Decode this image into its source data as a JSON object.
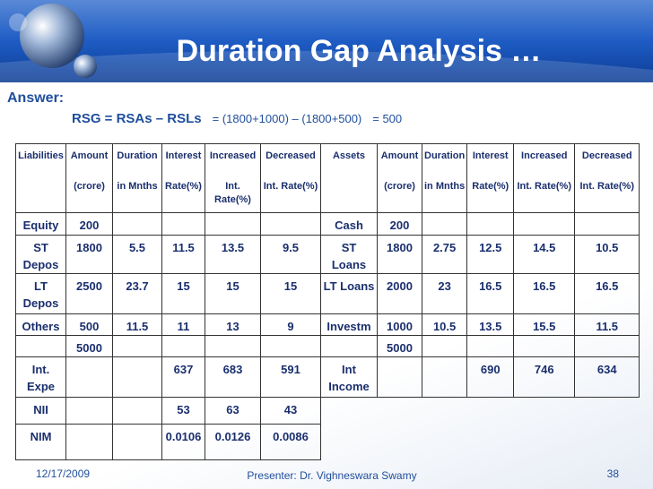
{
  "header": {
    "title": "Duration Gap Analysis …"
  },
  "answer": {
    "label": "Answer:",
    "formula": "RSG  = RSAs – RSLs",
    "expression": "= (1800+1000) – (1800+500)",
    "result": "=  500"
  },
  "table": {
    "header": [
      [
        "Liabilities"
      ],
      [
        "Amount",
        "(crore)"
      ],
      [
        "Duration",
        "in Mnths"
      ],
      [
        "Interest",
        "Rate(%)"
      ],
      [
        "Increased",
        "Int. Rate(%)"
      ],
      [
        "Decreased",
        "Int. Rate(%)"
      ],
      [
        "Assets"
      ],
      [
        "Amount",
        "(crore)"
      ],
      [
        "Duration",
        "in Mnths"
      ],
      [
        "Interest",
        "Rate(%)"
      ],
      [
        "Increased",
        "Int. Rate(%)"
      ],
      [
        "Decreased",
        "Int. Rate(%)"
      ]
    ],
    "rows": [
      [
        "Equity",
        "200",
        null,
        null,
        null,
        null,
        "Cash",
        "200",
        null,
        null,
        null,
        null
      ],
      [
        "ST Depos",
        "1800",
        "5.5",
        "11.5",
        "13.5",
        "9.5",
        "ST Loans",
        "1800",
        "2.75",
        "12.5",
        "14.5",
        "10.5"
      ],
      [
        "LT Depos",
        "2500",
        "23.7",
        "15",
        "15",
        "15",
        "LT Loans",
        "2000",
        "23",
        "16.5",
        "16.5",
        "16.5"
      ],
      [
        "Others",
        "500",
        "11.5",
        "11",
        "13",
        "9",
        "Investm",
        "1000",
        "10.5",
        "13.5",
        "15.5",
        "11.5"
      ],
      [
        null,
        "5000",
        null,
        null,
        null,
        null,
        null,
        "5000",
        null,
        null,
        null,
        null
      ],
      [
        "Int. Expe",
        null,
        null,
        "637",
        "683",
        "591",
        "Int Income",
        null,
        null,
        "690",
        "746",
        "634"
      ],
      [
        "NII",
        null,
        null,
        "53",
        "63",
        "43"
      ],
      [
        "NIM",
        null,
        null,
        "0.0106",
        "0.0126",
        "0.0086"
      ]
    ]
  },
  "footer": {
    "date": "12/17/2009",
    "presenter": "Presenter: Dr. Vighneswara Swamy",
    "page": "38"
  }
}
